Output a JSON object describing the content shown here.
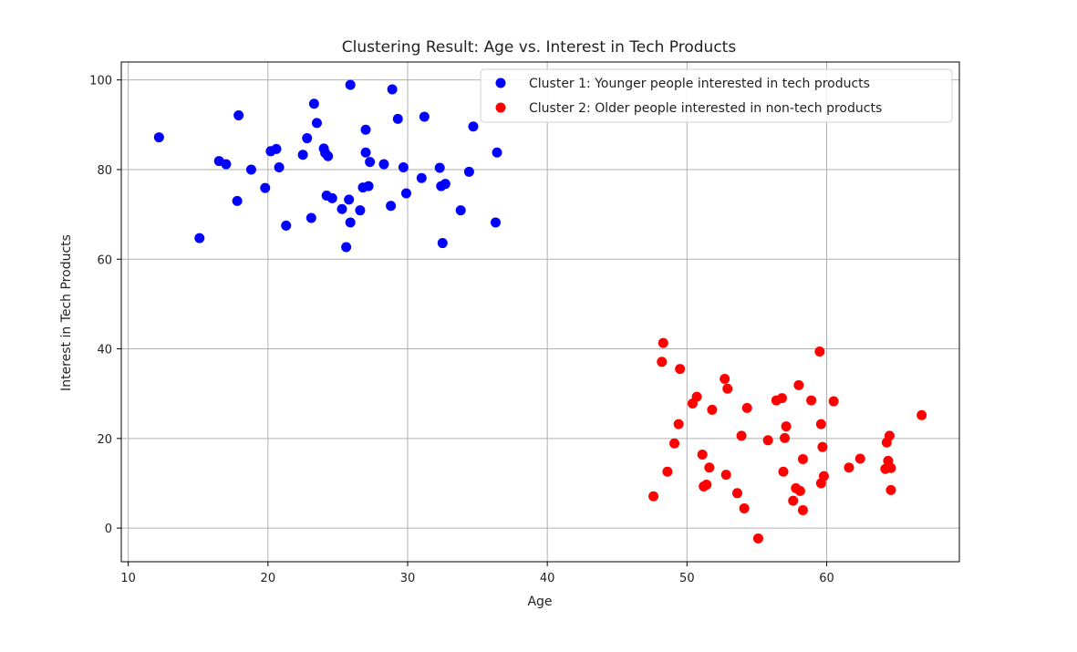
{
  "chart_data": {
    "type": "scatter",
    "title": "Clustering Result: Age vs. Interest in Tech Products",
    "xlabel": "Age",
    "ylabel": "Interest in Tech Products",
    "xlim": [
      9.5,
      69.5
    ],
    "ylim": [
      -7.5,
      104
    ],
    "xticks": [
      10,
      20,
      30,
      40,
      50,
      60
    ],
    "yticks": [
      0,
      20,
      40,
      60,
      80,
      100
    ],
    "grid": true,
    "legend_position": "top-right",
    "series": [
      {
        "name": "Cluster 1: Younger people interested in tech products",
        "color": "#0000ff",
        "points": [
          [
            12.2,
            87.2
          ],
          [
            15.1,
            64.7
          ],
          [
            16.5,
            81.9
          ],
          [
            17.0,
            81.2
          ],
          [
            17.8,
            73.0
          ],
          [
            17.9,
            92.1
          ],
          [
            18.8,
            80.0
          ],
          [
            19.8,
            75.9
          ],
          [
            20.2,
            84.1
          ],
          [
            20.6,
            84.6
          ],
          [
            20.8,
            80.5
          ],
          [
            21.3,
            67.5
          ],
          [
            22.5,
            83.3
          ],
          [
            22.8,
            87.0
          ],
          [
            23.1,
            69.2
          ],
          [
            23.3,
            94.7
          ],
          [
            23.5,
            90.4
          ],
          [
            24.0,
            84.7
          ],
          [
            24.1,
            83.7
          ],
          [
            24.2,
            74.2
          ],
          [
            24.3,
            83.0
          ],
          [
            24.6,
            73.6
          ],
          [
            25.3,
            71.2
          ],
          [
            25.6,
            62.7
          ],
          [
            25.8,
            73.3
          ],
          [
            25.9,
            68.2
          ],
          [
            25.9,
            98.9
          ],
          [
            26.6,
            70.9
          ],
          [
            26.8,
            76.0
          ],
          [
            27.0,
            88.9
          ],
          [
            27.0,
            83.8
          ],
          [
            27.2,
            76.3
          ],
          [
            27.3,
            81.7
          ],
          [
            28.3,
            81.2
          ],
          [
            28.8,
            71.9
          ],
          [
            28.9,
            97.9
          ],
          [
            29.3,
            91.3
          ],
          [
            29.7,
            80.5
          ],
          [
            29.9,
            74.7
          ],
          [
            31.0,
            78.1
          ],
          [
            31.2,
            91.8
          ],
          [
            32.3,
            80.4
          ],
          [
            32.4,
            76.3
          ],
          [
            32.5,
            63.6
          ],
          [
            32.7,
            76.8
          ],
          [
            33.8,
            70.9
          ],
          [
            34.4,
            79.5
          ],
          [
            34.7,
            89.6
          ],
          [
            36.3,
            68.2
          ],
          [
            36.4,
            83.8
          ]
        ]
      },
      {
        "name": "Cluster 2: Older people interested in non-tech products",
        "color": "#ff0000",
        "points": [
          [
            47.6,
            7.1
          ],
          [
            48.2,
            37.1
          ],
          [
            48.3,
            41.3
          ],
          [
            48.6,
            12.6
          ],
          [
            49.1,
            18.9
          ],
          [
            49.4,
            23.2
          ],
          [
            49.5,
            35.5
          ],
          [
            50.4,
            27.8
          ],
          [
            50.7,
            29.3
          ],
          [
            51.1,
            16.4
          ],
          [
            51.2,
            9.3
          ],
          [
            51.4,
            9.7
          ],
          [
            51.6,
            13.5
          ],
          [
            51.8,
            26.4
          ],
          [
            52.7,
            33.3
          ],
          [
            52.8,
            11.9
          ],
          [
            52.9,
            31.1
          ],
          [
            53.6,
            7.8
          ],
          [
            53.9,
            20.6
          ],
          [
            54.1,
            4.4
          ],
          [
            54.3,
            26.8
          ],
          [
            55.1,
            -2.3
          ],
          [
            55.8,
            19.6
          ],
          [
            56.4,
            28.5
          ],
          [
            56.8,
            29.0
          ],
          [
            56.9,
            12.6
          ],
          [
            57.0,
            20.1
          ],
          [
            57.1,
            22.7
          ],
          [
            57.6,
            6.1
          ],
          [
            57.8,
            8.9
          ],
          [
            58.0,
            31.9
          ],
          [
            58.1,
            8.3
          ],
          [
            58.3,
            15.4
          ],
          [
            58.3,
            4.0
          ],
          [
            58.9,
            28.5
          ],
          [
            59.5,
            39.4
          ],
          [
            59.6,
            23.2
          ],
          [
            59.6,
            10.0
          ],
          [
            59.7,
            18.1
          ],
          [
            59.8,
            11.6
          ],
          [
            60.5,
            28.3
          ],
          [
            61.6,
            13.5
          ],
          [
            62.4,
            15.5
          ],
          [
            64.2,
            13.2
          ],
          [
            64.3,
            19.1
          ],
          [
            64.4,
            15.0
          ],
          [
            64.5,
            20.6
          ],
          [
            64.6,
            13.4
          ],
          [
            64.6,
            8.5
          ],
          [
            66.8,
            25.2
          ]
        ]
      }
    ]
  }
}
